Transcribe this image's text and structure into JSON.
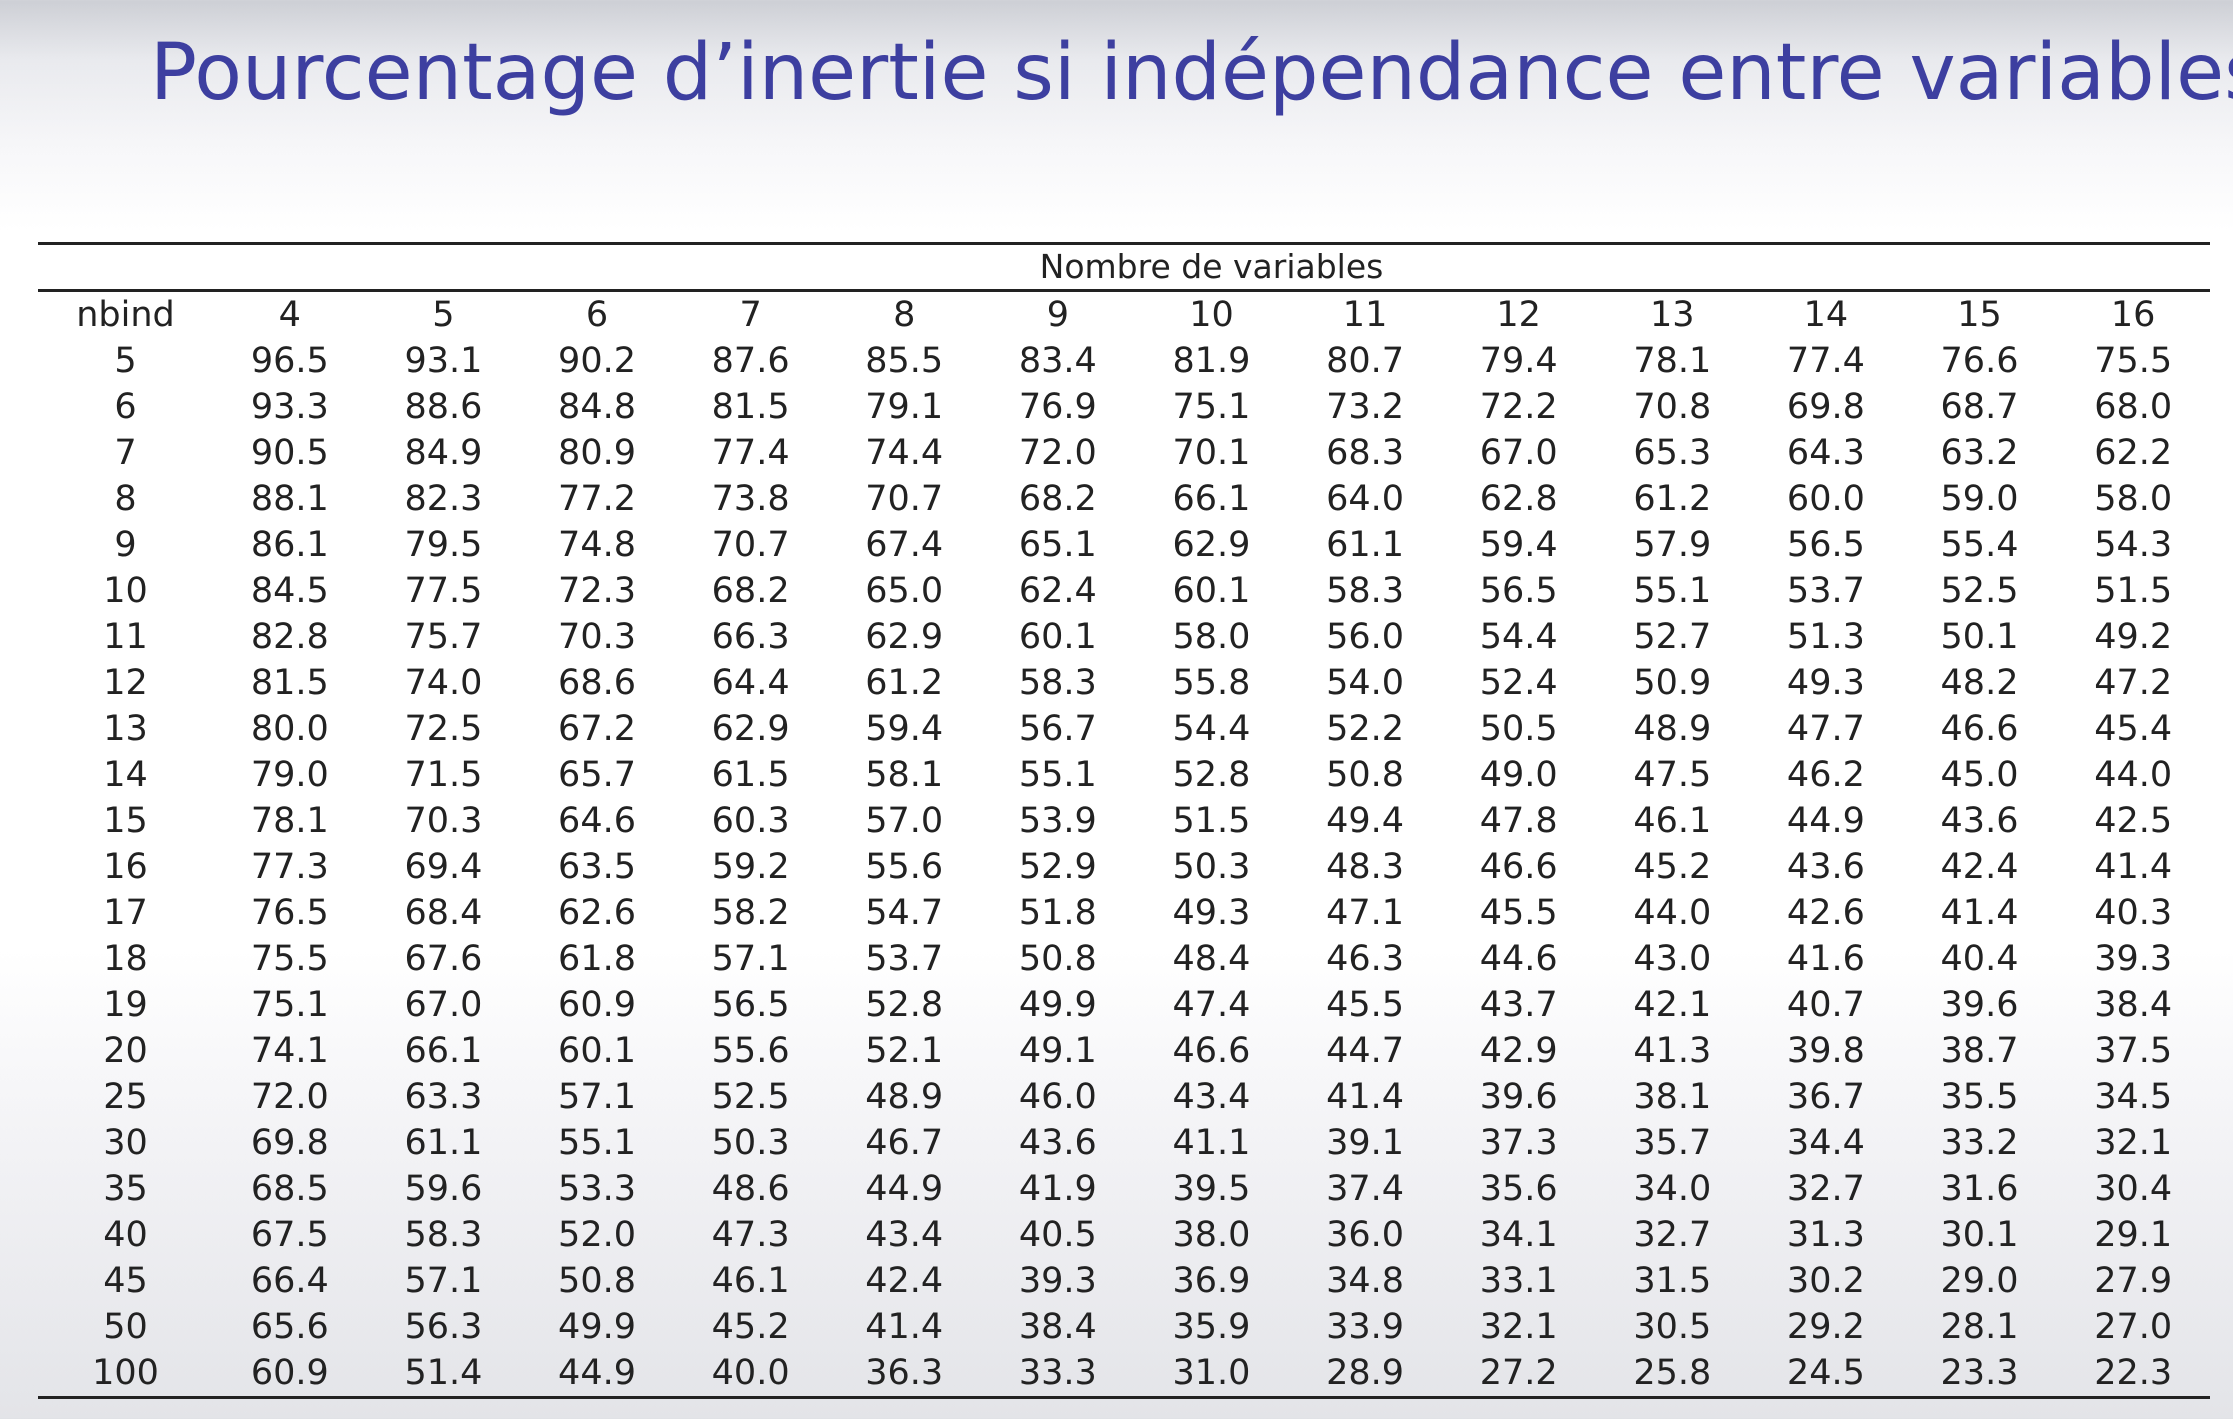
{
  "title": "Pourcentage d’inertie si indépendance entre variables",
  "table": {
    "group_header": "Nombre de variables",
    "row_header": "nbind",
    "columns": [
      "4",
      "5",
      "6",
      "7",
      "8",
      "9",
      "10",
      "11",
      "12",
      "13",
      "14",
      "15",
      "16"
    ],
    "rows": [
      {
        "nbind": "5",
        "values": [
          "96.5",
          "93.1",
          "90.2",
          "87.6",
          "85.5",
          "83.4",
          "81.9",
          "80.7",
          "79.4",
          "78.1",
          "77.4",
          "76.6",
          "75.5"
        ]
      },
      {
        "nbind": "6",
        "values": [
          "93.3",
          "88.6",
          "84.8",
          "81.5",
          "79.1",
          "76.9",
          "75.1",
          "73.2",
          "72.2",
          "70.8",
          "69.8",
          "68.7",
          "68.0"
        ]
      },
      {
        "nbind": "7",
        "values": [
          "90.5",
          "84.9",
          "80.9",
          "77.4",
          "74.4",
          "72.0",
          "70.1",
          "68.3",
          "67.0",
          "65.3",
          "64.3",
          "63.2",
          "62.2"
        ]
      },
      {
        "nbind": "8",
        "values": [
          "88.1",
          "82.3",
          "77.2",
          "73.8",
          "70.7",
          "68.2",
          "66.1",
          "64.0",
          "62.8",
          "61.2",
          "60.0",
          "59.0",
          "58.0"
        ]
      },
      {
        "nbind": "9",
        "values": [
          "86.1",
          "79.5",
          "74.8",
          "70.7",
          "67.4",
          "65.1",
          "62.9",
          "61.1",
          "59.4",
          "57.9",
          "56.5",
          "55.4",
          "54.3"
        ]
      },
      {
        "nbind": "10",
        "values": [
          "84.5",
          "77.5",
          "72.3",
          "68.2",
          "65.0",
          "62.4",
          "60.1",
          "58.3",
          "56.5",
          "55.1",
          "53.7",
          "52.5",
          "51.5"
        ]
      },
      {
        "nbind": "11",
        "values": [
          "82.8",
          "75.7",
          "70.3",
          "66.3",
          "62.9",
          "60.1",
          "58.0",
          "56.0",
          "54.4",
          "52.7",
          "51.3",
          "50.1",
          "49.2"
        ]
      },
      {
        "nbind": "12",
        "values": [
          "81.5",
          "74.0",
          "68.6",
          "64.4",
          "61.2",
          "58.3",
          "55.8",
          "54.0",
          "52.4",
          "50.9",
          "49.3",
          "48.2",
          "47.2"
        ]
      },
      {
        "nbind": "13",
        "values": [
          "80.0",
          "72.5",
          "67.2",
          "62.9",
          "59.4",
          "56.7",
          "54.4",
          "52.2",
          "50.5",
          "48.9",
          "47.7",
          "46.6",
          "45.4"
        ]
      },
      {
        "nbind": "14",
        "values": [
          "79.0",
          "71.5",
          "65.7",
          "61.5",
          "58.1",
          "55.1",
          "52.8",
          "50.8",
          "49.0",
          "47.5",
          "46.2",
          "45.0",
          "44.0"
        ]
      },
      {
        "nbind": "15",
        "values": [
          "78.1",
          "70.3",
          "64.6",
          "60.3",
          "57.0",
          "53.9",
          "51.5",
          "49.4",
          "47.8",
          "46.1",
          "44.9",
          "43.6",
          "42.5"
        ]
      },
      {
        "nbind": "16",
        "values": [
          "77.3",
          "69.4",
          "63.5",
          "59.2",
          "55.6",
          "52.9",
          "50.3",
          "48.3",
          "46.6",
          "45.2",
          "43.6",
          "42.4",
          "41.4"
        ]
      },
      {
        "nbind": "17",
        "values": [
          "76.5",
          "68.4",
          "62.6",
          "58.2",
          "54.7",
          "51.8",
          "49.3",
          "47.1",
          "45.5",
          "44.0",
          "42.6",
          "41.4",
          "40.3"
        ]
      },
      {
        "nbind": "18",
        "values": [
          "75.5",
          "67.6",
          "61.8",
          "57.1",
          "53.7",
          "50.8",
          "48.4",
          "46.3",
          "44.6",
          "43.0",
          "41.6",
          "40.4",
          "39.3"
        ]
      },
      {
        "nbind": "19",
        "values": [
          "75.1",
          "67.0",
          "60.9",
          "56.5",
          "52.8",
          "49.9",
          "47.4",
          "45.5",
          "43.7",
          "42.1",
          "40.7",
          "39.6",
          "38.4"
        ]
      },
      {
        "nbind": "20",
        "values": [
          "74.1",
          "66.1",
          "60.1",
          "55.6",
          "52.1",
          "49.1",
          "46.6",
          "44.7",
          "42.9",
          "41.3",
          "39.8",
          "38.7",
          "37.5"
        ]
      },
      {
        "nbind": "25",
        "values": [
          "72.0",
          "63.3",
          "57.1",
          "52.5",
          "48.9",
          "46.0",
          "43.4",
          "41.4",
          "39.6",
          "38.1",
          "36.7",
          "35.5",
          "34.5"
        ]
      },
      {
        "nbind": "30",
        "values": [
          "69.8",
          "61.1",
          "55.1",
          "50.3",
          "46.7",
          "43.6",
          "41.1",
          "39.1",
          "37.3",
          "35.7",
          "34.4",
          "33.2",
          "32.1"
        ]
      },
      {
        "nbind": "35",
        "values": [
          "68.5",
          "59.6",
          "53.3",
          "48.6",
          "44.9",
          "41.9",
          "39.5",
          "37.4",
          "35.6",
          "34.0",
          "32.7",
          "31.6",
          "30.4"
        ]
      },
      {
        "nbind": "40",
        "values": [
          "67.5",
          "58.3",
          "52.0",
          "47.3",
          "43.4",
          "40.5",
          "38.0",
          "36.0",
          "34.1",
          "32.7",
          "31.3",
          "30.1",
          "29.1"
        ]
      },
      {
        "nbind": "45",
        "values": [
          "66.4",
          "57.1",
          "50.8",
          "46.1",
          "42.4",
          "39.3",
          "36.9",
          "34.8",
          "33.1",
          "31.5",
          "30.2",
          "29.0",
          "27.9"
        ]
      },
      {
        "nbind": "50",
        "values": [
          "65.6",
          "56.3",
          "49.9",
          "45.2",
          "41.4",
          "38.4",
          "35.9",
          "33.9",
          "32.1",
          "30.5",
          "29.2",
          "28.1",
          "27.0"
        ]
      },
      {
        "nbind": "100",
        "values": [
          "60.9",
          "51.4",
          "44.9",
          "40.0",
          "36.3",
          "33.3",
          "31.0",
          "28.9",
          "27.2",
          "25.8",
          "24.5",
          "23.3",
          "22.3"
        ]
      }
    ]
  }
}
